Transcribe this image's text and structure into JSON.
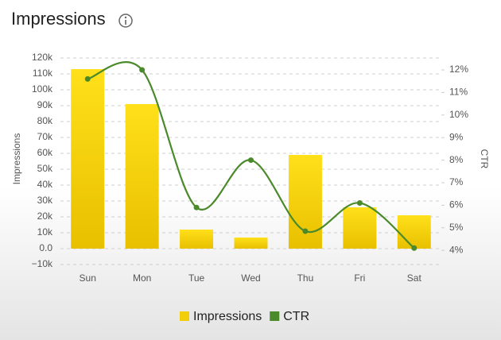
{
  "chart_data": {
    "type": "bar_line",
    "title": "Impressions",
    "categories": [
      "Sun",
      "Mon",
      "Tue",
      "Wed",
      "Thu",
      "Fri",
      "Sat"
    ],
    "y_label": "Impressions",
    "y2_label": "CTR",
    "series": [
      {
        "name": "Impressions",
        "type": "bar",
        "color": "#f2cd0a",
        "values": [
          113000,
          91000,
          12000,
          7000,
          59000,
          26000,
          21000
        ]
      },
      {
        "name": "CTR",
        "type": "line",
        "axis": "y2",
        "color": "#4b8a2b",
        "values": [
          11.6,
          12.0,
          5.9,
          8.0,
          4.85,
          6.1,
          4.1
        ]
      }
    ],
    "ylim": [
      -10000,
      120000
    ],
    "yticks": [
      {
        "value": -10000,
        "label": "−10k"
      },
      {
        "value": 0,
        "label": "0.0"
      },
      {
        "value": 10000,
        "label": "10k"
      },
      {
        "value": 20000,
        "label": "20k"
      },
      {
        "value": 30000,
        "label": "30k"
      },
      {
        "value": 40000,
        "label": "40k"
      },
      {
        "value": 50000,
        "label": "50k"
      },
      {
        "value": 60000,
        "label": "60k"
      },
      {
        "value": 70000,
        "label": "70k"
      },
      {
        "value": 80000,
        "label": "80k"
      },
      {
        "value": 90000,
        "label": "90k"
      },
      {
        "value": 100000,
        "label": "100k"
      },
      {
        "value": 110000,
        "label": "110k"
      },
      {
        "value": 120000,
        "label": "120k"
      }
    ],
    "y2lim": [
      3.37,
      12.53
    ],
    "y2ticks": [
      {
        "value": 4,
        "label": "4%"
      },
      {
        "value": 5,
        "label": "5%"
      },
      {
        "value": 6,
        "label": "6%"
      },
      {
        "value": 7,
        "label": "7%"
      },
      {
        "value": 8,
        "label": "8%"
      },
      {
        "value": 9,
        "label": "9%"
      },
      {
        "value": 10,
        "label": "10%"
      },
      {
        "value": 11,
        "label": "11%"
      },
      {
        "value": 12,
        "label": "12%"
      }
    ],
    "grid": true
  }
}
